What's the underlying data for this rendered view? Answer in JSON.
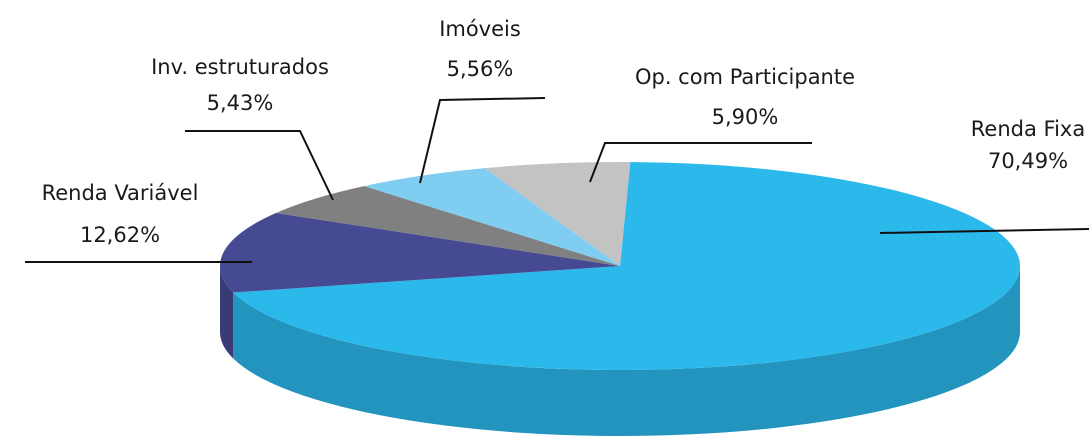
{
  "chart_data": {
    "type": "pie",
    "categories": [
      "Renda Fixa",
      "Renda Variável",
      "Inv. estruturados",
      "Imóveis",
      "Op. com Participante"
    ],
    "values": [
      70.49,
      12.62,
      5.43,
      5.56,
      5.9
    ],
    "value_labels": [
      "70,49%",
      "12,62%",
      "5,43%",
      "5,56%",
      "5,90%"
    ],
    "colors": [
      "#2bb9ec",
      "#464a93",
      "#808080",
      "#7fcdf1",
      "#c3c3c3"
    ]
  }
}
